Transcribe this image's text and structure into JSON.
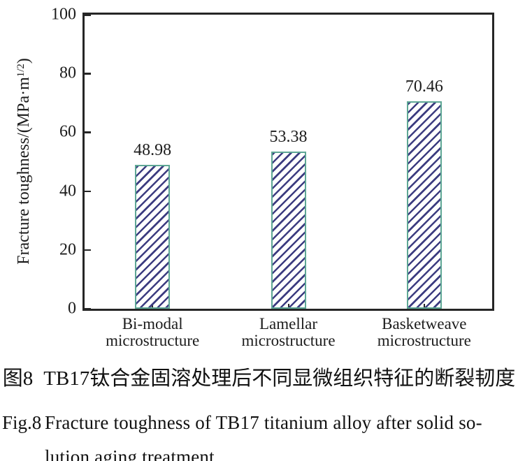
{
  "chart_data": {
    "type": "bar",
    "title": "",
    "categories": [
      "Bi-modal microstructure",
      "Lamellar microstructure",
      "Basketweave microstructure"
    ],
    "category_lines": [
      [
        "Bi-modal",
        "microstructure"
      ],
      [
        "Lamellar",
        "microstructure"
      ],
      [
        "Basketweave",
        "microstructure"
      ]
    ],
    "values": [
      48.98,
      53.38,
      70.46
    ],
    "value_labels": [
      "48.98",
      "53.38",
      "70.46"
    ],
    "xlabel": "",
    "ylabel": "Fracture toughness/(MPa·m^1/2)",
    "ylabel_prefix": "Fracture toughness/(MPa·m",
    "ylabel_sup": "1/2",
    "ylabel_suffix": ")",
    "ylim": [
      0,
      100
    ],
    "yticks": [
      0,
      20,
      40,
      60,
      80,
      100
    ],
    "grid": false,
    "legend": false,
    "bar_fill": "#ffffff",
    "bar_border_color": "#5ea795",
    "hatch_color": "#3c3c80",
    "hatch_style": "diagonal-forward-slash",
    "axis_color": "#262626"
  },
  "captions": {
    "zh_label": "图8",
    "zh_text": "TB17钛合金固溶处理后不同显微组织特征的断裂韧度",
    "en_label": "Fig.8",
    "en_line1": "Fracture toughness of TB17 titanium alloy after solid so-",
    "en_line2": "lution aging treatment"
  }
}
